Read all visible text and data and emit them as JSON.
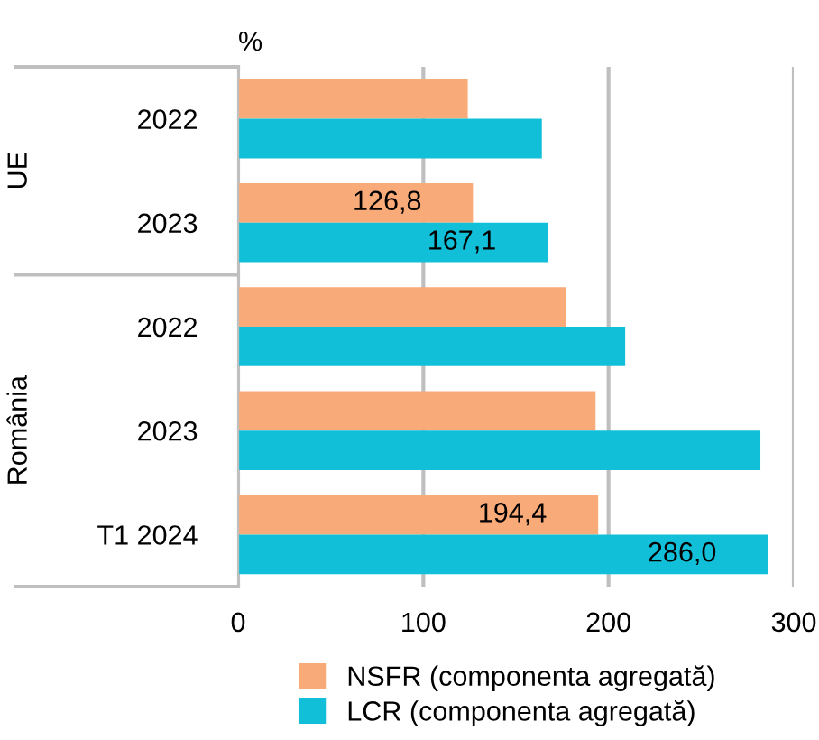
{
  "chart_data": {
    "type": "bar",
    "orientation": "horizontal",
    "xlabel": "%",
    "categories": [
      "2022",
      "2023",
      "2022",
      "2023",
      "T1 2024"
    ],
    "annotations": [
      "UE",
      "România"
    ],
    "series": [
      {
        "name": "NSFR (componenta agregată)",
        "color": "#f8aa78",
        "values": [
          124,
          126.8,
          177,
          193,
          194.4
        ],
        "value_labels": [
          null,
          "126,8",
          null,
          null,
          "194,4"
        ]
      },
      {
        "name": "LCR (componenta agregată)",
        "color": "#12bfd9",
        "values": [
          164,
          167.1,
          209,
          282,
          286.0
        ],
        "value_labels": [
          null,
          "167,1",
          null,
          null,
          "286,0"
        ]
      }
    ],
    "xlim": [
      0,
      300
    ],
    "xticks": [
      0,
      100,
      200,
      300
    ],
    "grid": "x",
    "legend": "bottom"
  }
}
